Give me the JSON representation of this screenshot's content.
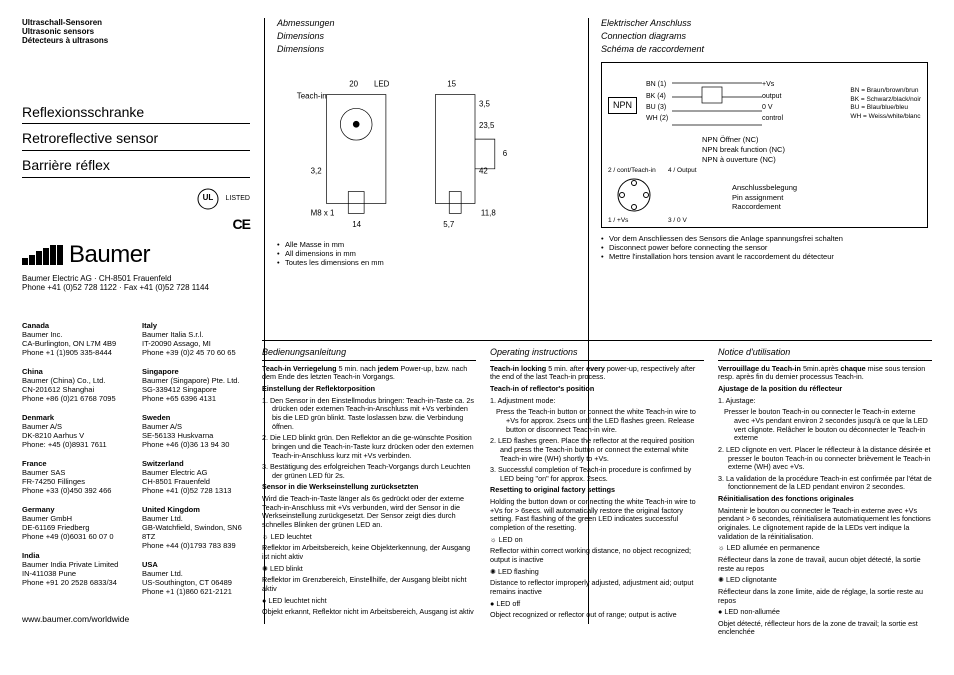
{
  "header": {
    "line1": "Ultraschall-Sensoren",
    "line2": "Ultrasonic sensors",
    "line3": "Détecteurs à ultrasons"
  },
  "titles": {
    "de": "Reflexionsschranke",
    "en": "Retroreflective sensor",
    "fr": "Barrière réflex"
  },
  "cert": {
    "ul": "UL",
    "listed": "LISTED",
    "ce": "CE"
  },
  "company": {
    "name": "Baumer",
    "addr1": "Baumer Electric AG · CH-8501 Frauenfeld",
    "addr2": "Phone +41 (0)52 728 1122 · Fax +41 (0)52 728 1144"
  },
  "offices_left": [
    {
      "c": "Canada",
      "l1": "Baumer Inc.",
      "l2": "CA-Burlington, ON L7M 4B9",
      "l3": "Phone +1 (1)905 335-8444"
    },
    {
      "c": "China",
      "l1": "Baumer (China) Co., Ltd.",
      "l2": "CN-201612 Shanghai",
      "l3": "Phone +86 (0)21 6768 7095"
    },
    {
      "c": "Denmark",
      "l1": "Baumer A/S",
      "l2": "DK-8210 Aarhus V",
      "l3": "Phone: +45 (0)8931 7611"
    },
    {
      "c": "France",
      "l1": "Baumer SAS",
      "l2": "FR-74250 Fillinges",
      "l3": "Phone +33 (0)450 392 466"
    },
    {
      "c": "Germany",
      "l1": "Baumer GmbH",
      "l2": "DE-61169 Friedberg",
      "l3": "Phone +49 (0)6031 60 07 0"
    },
    {
      "c": "India",
      "l1": "Baumer India Private Limited",
      "l2": "IN-411038 Pune",
      "l3": "Phone +91 20 2528 6833/34"
    }
  ],
  "offices_right": [
    {
      "c": "Italy",
      "l1": "Baumer Italia S.r.l.",
      "l2": "IT-20090 Assago, MI",
      "l3": "Phone +39 (0)2 45 70 60 65"
    },
    {
      "c": "Singapore",
      "l1": "Baumer (Singapore) Pte. Ltd.",
      "l2": "SG-339412 Singapore",
      "l3": "Phone +65 6396 4131"
    },
    {
      "c": "Sweden",
      "l1": "Baumer A/S",
      "l2": "SE-56133 Huskvarna",
      "l3": "Phone +46 (0)36 13 94 30"
    },
    {
      "c": "Switzerland",
      "l1": "Baumer Electric AG",
      "l2": "CH-8501 Frauenfeld",
      "l3": "Phone +41 (0)52 728 1313"
    },
    {
      "c": "United Kingdom",
      "l1": "Baumer Ltd.",
      "l2": "GB-Watchfield, Swindon, SN6 8TZ",
      "l3": "Phone +44 (0)1793 783 839"
    },
    {
      "c": "USA",
      "l1": "Baumer Ltd.",
      "l2": "US-Southington, CT 06489",
      "l3": "Phone +1 (1)860 621-2121"
    }
  ],
  "web": "www.baumer.com/worldwide",
  "mid": {
    "h_de": "Abmessungen",
    "h_en": "Dimensions",
    "h_fr": "Dimensions",
    "dims": {
      "teachin": "Teach-in",
      "led": "LED",
      "w20": "20",
      "w15": "15",
      "h3_5": "3,5",
      "h6": "6",
      "h23_5": "23,5",
      "h42": "42",
      "h3_2": "3,2",
      "m8": "M8 x 1",
      "w14": "14",
      "w5_7": "5,7",
      "h11_8": "11,8"
    },
    "notes": [
      "Alle Masse in mm",
      "All dimensions in mm",
      "Toutes les dimensions en mm"
    ]
  },
  "right": {
    "h_de": "Elektrischer Anschluss",
    "h_en": "Connection diagrams",
    "h_fr": "Schéma de raccordement",
    "npn": "NPN",
    "wires": {
      "bn": "BN (1)",
      "bk": "BK (4)",
      "bu": "BU (3)",
      "wh": "WH (2)"
    },
    "outs": {
      "vs": "+Vs",
      "out": "output",
      "ov": "0 V",
      "ctrl": "control"
    },
    "legend": {
      "bn": "BN = Braun/brown/brun",
      "bk": "BK = Schwarz/black/noir",
      "bu": "BU = Blau/blue/bleu",
      "wh": "WH = Weiss/white/blanc"
    },
    "npn_desc": {
      "de": "NPN Öffner (NC)",
      "en": "NPN break function (NC)",
      "fr": "NPN à ouverture (NC)"
    },
    "pins": {
      "p1": "1 / +Vs",
      "p2": "2 / cont/Teach-in",
      "p3": "3 / 0 V",
      "p4": "4 / Output"
    },
    "assign": {
      "de": "Anschlussbelegung",
      "en": "Pin assignment",
      "fr": "Raccordement"
    },
    "warn": [
      "Vor dem Anschliessen des Sensors die Anlage spannungsfrei schalten",
      "Disconnect power before connecting the sensor",
      "Mettre l'installation hors tension avant le raccordement du détecteur"
    ]
  },
  "instr": {
    "de": {
      "h": "Bedienungsanleitung",
      "lock": "Teach-in Verriegelung  5 min. nach jedem Power-up, bzw. nach dem Ende des letzten Teach-in Vorgangs.",
      "pos_h": "Einstellung der Reflektorposition",
      "s1": "1. Den Sensor in den Einstellmodus bringen: Teach-in-Taste ca. 2s drücken oder externen Teach-in-Anschluss mit +Vs verbinden bis die LED grün blinkt. Taste loslassen bzw. die Verbindung öffnen.",
      "s2": "2. Die LED blinkt grün. Den Reflektor an die ge-wünschte Position bringen und die Teach-in-Taste kurz drücken oder den externen Teach-in-Anschluss kurz mit +Vs verbinden.",
      "s3": "3. Bestätigung des erfolgreichen Teach-Vorgangs durch Leuchten der grünen LED für 2s.",
      "reset_h": "Sensor in die Werkseinstellung zurücksetzten",
      "reset": "Wird die Teach-in-Taste länger als 6s gedrückt oder der externe Teach-in-Anschluss mit +Vs verbunden, wird der Sensor in die Werkseinstellung zurückgesetzt. Der Sensor zeigt dies durch schnelles Blinken der grünen LED an.",
      "led_on": "LED leuchtet",
      "led_on_d": "Reflektor im Arbeitsbereich, keine Objekterkennung, der Ausgang ist nicht aktiv",
      "led_fl": "LED blinkt",
      "led_fl_d": "Reflektor im Grenzbereich, Einstellhilfe, der Ausgang bleibt nicht aktiv",
      "led_off": "LED leuchtet nicht",
      "led_off_d": "Objekt erkannt, Reflektor nicht im Arbeitsbereich, Ausgang ist aktiv"
    },
    "en": {
      "h": "Operating instructions",
      "lock": "Teach-in locking  5 min. after every power-up, respectively after the end of the last Teach-in process.",
      "pos_h": "Teach-in of reflector's position",
      "s0": "1. Adjustment mode:",
      "s1": "Press the Teach-in button or connect the white Teach-in wire to +Vs for approx. 2secs until the LED flashes green. Release button or disconnect Teach-in wire.",
      "s2": "2. LED flashes green. Place the reflector at the required position and press the Teach-in button or connect the external white Teach-in wire (WH) shortly to +Vs.",
      "s3": "3. Successful completion of Teach-in procedure is confirmed by LED being \"on\" for approx. 2secs.",
      "reset_h": "Resetting to original factory settings",
      "reset": "Holding the button down or connecting the white Teach-in wire to +Vs for > 6secs. will automatically restore the original factory setting. Fast flashing of the green LED indicates successful completion of the resetting.",
      "led_on": "LED on",
      "led_on_d": "Reflector within correct working distance, no object recognized; output is inactive",
      "led_fl": "LED flashing",
      "led_fl_d": "Distance to reflector improperly adjusted, adjustment aid; output remains inactive",
      "led_off": "LED off",
      "led_off_d": "Object recognized or reflector out of range; output is active"
    },
    "fr": {
      "h": "Notice d'utilisation",
      "lock": "Verrouillage du Teach-in  5min.après chaque mise sous tension resp. après fin du dernier processus Teach-in.",
      "pos_h": "Ajustage de la position du réflecteur",
      "s0": "1. Ajustage:",
      "s1": "Presser le bouton Teach-in ou connecter le Teach-in externe avec +Vs pendant environ 2 secondes jusqu'à ce que la LED vert clignote. Relâcher le bouton ou déconnecter le Teach-in externe",
      "s2": "2. LED clignote en vert. Placer le réflecteur à la distance désirée et presser le bouton Teach-in ou connecter brièvement le Teach-in externe (WH) avec +Vs.",
      "s3": "3. La validation de la procédure Teach-in est confirmée par l'état de fonctionnement de la LED pendant environ 2 secondes.",
      "reset_h": "Réinitialisation des fonctions originales",
      "reset": "Maintenir le bouton ou connecter le Teach-in externe avec +Vs pendant > 6 secondes, réinitialisera automatiquement les fonctions originales. Le clignotement rapide de la LEDs vert indique la validation de la réinitialisation.",
      "led_on": "LED allumée en permanence",
      "led_on_d": "Réflecteur dans la zone de travail, aucun objet détecté, la sortie reste au repos",
      "led_fl": "LED clignotante",
      "led_fl_d": "Réflecteur dans la zone limite, aide de réglage, la sortie reste au repos",
      "led_off": "LED non-allumée",
      "led_off_d": "Objet détecté, réflecteur hors de la zone de travail; la sortie est enclenchée"
    }
  }
}
